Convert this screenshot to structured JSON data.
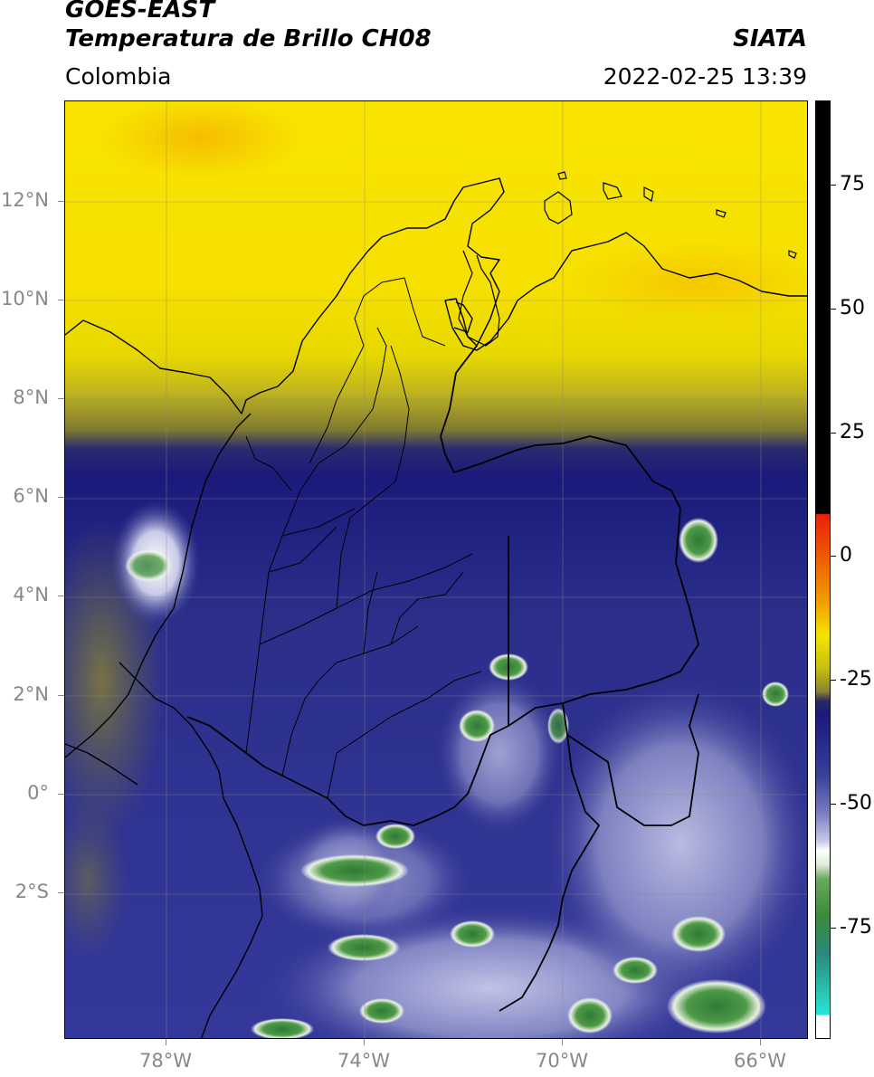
{
  "header": {
    "title_line1": "GOES-EAST",
    "title_line2": "Temperatura de Brillo CH08",
    "brand": "SIATA",
    "region": "Colombia",
    "datetime": "2022-02-25 13:39"
  },
  "colors": {
    "warm_yellow": "#f5e400",
    "orange_peak": "#f5b400",
    "olive": "#7f7a30",
    "navy": "#1a1a7a",
    "mid_blue": "#3a3f98",
    "light_lavender": "#b8bce0",
    "white": "#ffffff",
    "green": "#3a8a3a",
    "teal": "#2ad0c0",
    "red": "#e8200a",
    "black": "#000000"
  },
  "map": {
    "lat_labels": [
      "12°N",
      "10°N",
      "8°N",
      "6°N",
      "4°N",
      "2°N",
      "0°",
      "2°S"
    ],
    "lon_labels": [
      "78°W",
      "74°W",
      "70°W",
      "66°W"
    ]
  },
  "colorbar": {
    "labels": [
      "75",
      "50",
      "25",
      "0",
      "-25",
      "-50",
      "-75"
    ],
    "colors_top_to_bottom": [
      "#000000",
      "#000000",
      "#e8200a",
      "#f0a000",
      "#f5e400",
      "#8a8230",
      "#1a1a7a",
      "#5a5fb0",
      "#ffffff",
      "#3a8a3a",
      "#2ad0c0",
      "#ffffff"
    ]
  }
}
